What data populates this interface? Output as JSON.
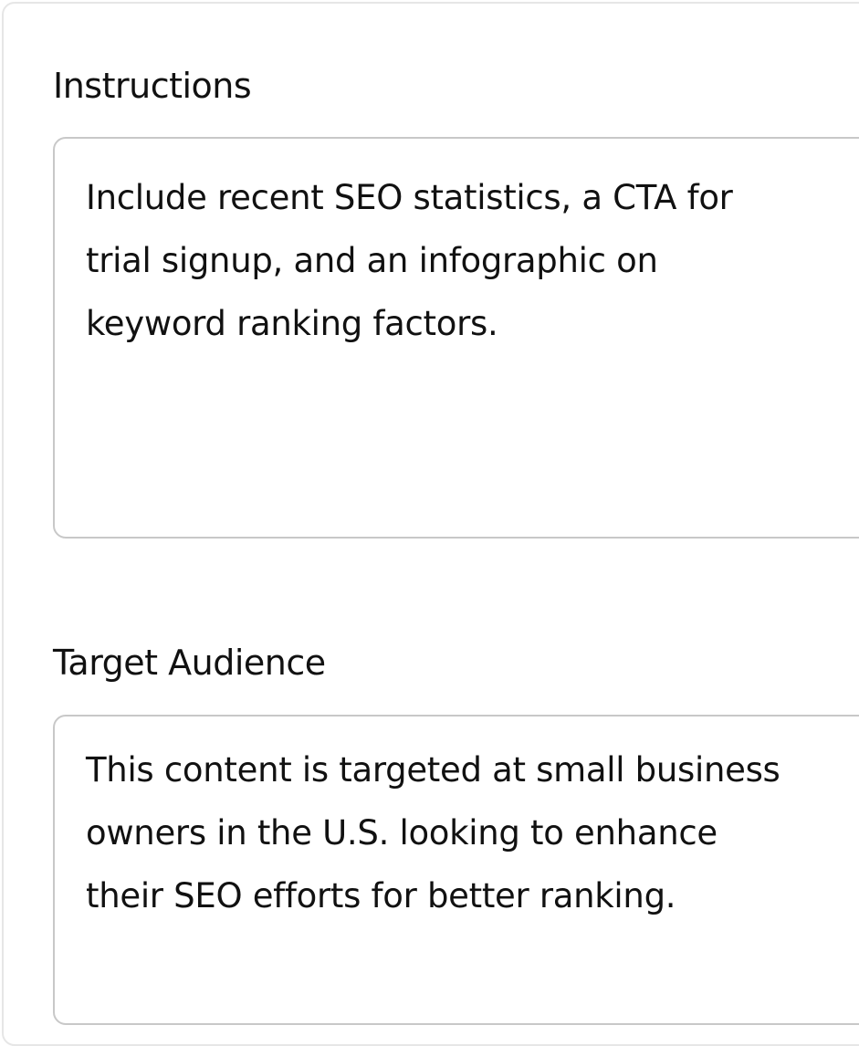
{
  "instructions": {
    "label": "Instructions",
    "value": "Include recent SEO statistics, a CTA for\ntrial signup, and an infographic on\nkeyword ranking factors."
  },
  "target_audience": {
    "label": "Target Audience",
    "value": "This content is targeted at small business\nowners in the U.S. looking to enhance\ntheir SEO efforts for better ranking."
  }
}
